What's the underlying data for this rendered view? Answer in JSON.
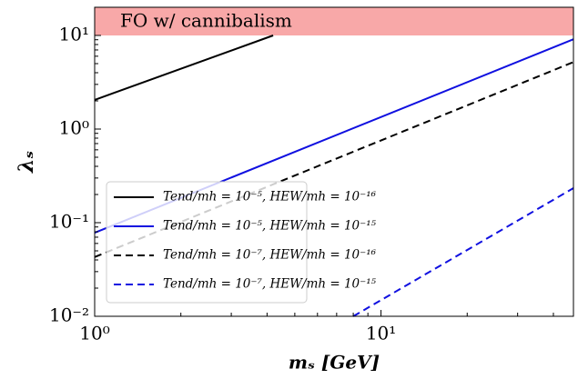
{
  "chart_data": {
    "type": "line",
    "xlabel": "mₛ [GeV]",
    "ylabel": "λₛ",
    "xscale": "log",
    "yscale": "log",
    "xlim": [
      1,
      47
    ],
    "ylim": [
      0.01,
      20
    ],
    "xticks": [
      {
        "value": 1,
        "label": "10⁰"
      },
      {
        "value": 10,
        "label": "10¹"
      }
    ],
    "yticks": [
      {
        "value": 0.01,
        "label": "10⁻²"
      },
      {
        "value": 0.1,
        "label": "10⁻¹"
      },
      {
        "value": 1,
        "label": "10⁰"
      },
      {
        "value": 10,
        "label": "10¹"
      }
    ],
    "xminorticks": [
      2,
      3,
      4,
      5,
      6,
      7,
      8,
      9,
      20,
      30,
      40
    ],
    "yminorticks": [
      0.02,
      0.03,
      0.04,
      0.05,
      0.06,
      0.07,
      0.08,
      0.09,
      0.2,
      0.3,
      0.4,
      0.5,
      0.6,
      0.7,
      0.8,
      0.9,
      2,
      3,
      4,
      5,
      6,
      7,
      8,
      9,
      20
    ],
    "shaded_region": {
      "label": "FO w/ cannibalism",
      "ymin": 10,
      "ymax": 20,
      "color": "#f8a8a8"
    },
    "legend": "lower left",
    "series": [
      {
        "name": "Tend/mh = 10⁻⁵, HEW/mh = 10⁻¹⁶",
        "color": "#000000",
        "linestyle": "solid",
        "x": [
          1,
          4.2
        ],
        "values": [
          2.05,
          10
        ]
      },
      {
        "name": "Tend/mh = 10⁻⁵, HEW/mh = 10⁻¹⁵",
        "color": "#1010e0",
        "linestyle": "solid",
        "x": [
          1,
          47
        ],
        "values": [
          0.078,
          9.1
        ]
      },
      {
        "name": "Tend/mh = 10⁻⁷, HEW/mh = 10⁻¹⁶",
        "color": "#000000",
        "linestyle": "dashed",
        "x": [
          1,
          47
        ],
        "values": [
          0.043,
          5.2
        ]
      },
      {
        "name": "Tend/mh = 10⁻⁷, HEW/mh = 10⁻¹⁵",
        "color": "#1010e0",
        "linestyle": "dashed",
        "x": [
          8.0,
          47
        ],
        "values": [
          0.01,
          0.234
        ]
      }
    ]
  }
}
